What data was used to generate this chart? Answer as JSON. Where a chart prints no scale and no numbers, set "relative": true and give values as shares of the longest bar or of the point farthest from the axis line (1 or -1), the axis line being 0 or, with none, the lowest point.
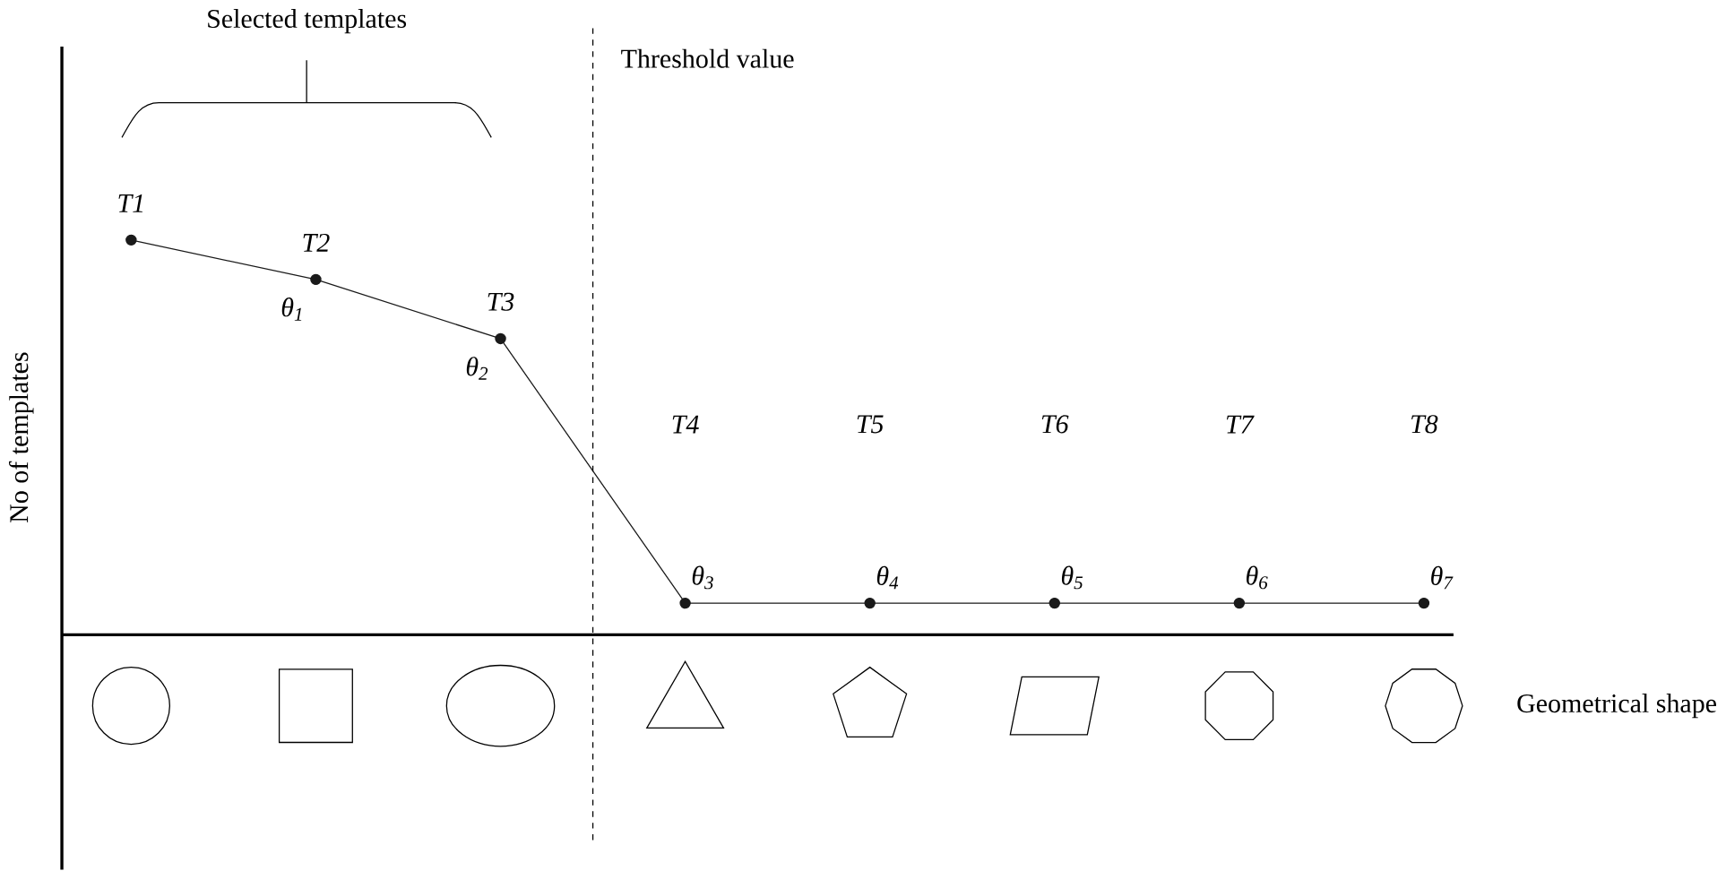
{
  "chart_data": {
    "type": "line",
    "relative": true,
    "xlabel": "Geometrical shape",
    "ylabel": "No of templates",
    "categories": [
      null,
      null,
      null,
      null,
      null,
      null,
      null,
      null
    ],
    "series": [
      {
        "color": "#1a1a1a",
        "values": [
          1,
          0.9,
          0.75,
          0.08,
          0.08,
          0.08,
          0.08,
          0.08
        ]
      }
    ],
    "marker": "circle",
    "line_style": "solid",
    "annotations": [
      "Selected templates",
      "Threshold value",
      "T1",
      "T2",
      "T3",
      "T4",
      "T5",
      "T6",
      "T7",
      "T8",
      "θ$_{1}$",
      "θ$_{2}$",
      "θ$_{3}$",
      "θ$_{4}$",
      "θ$_{5}$",
      "θ$_{6}$",
      "θ$_{7}$"
    ]
  }
}
